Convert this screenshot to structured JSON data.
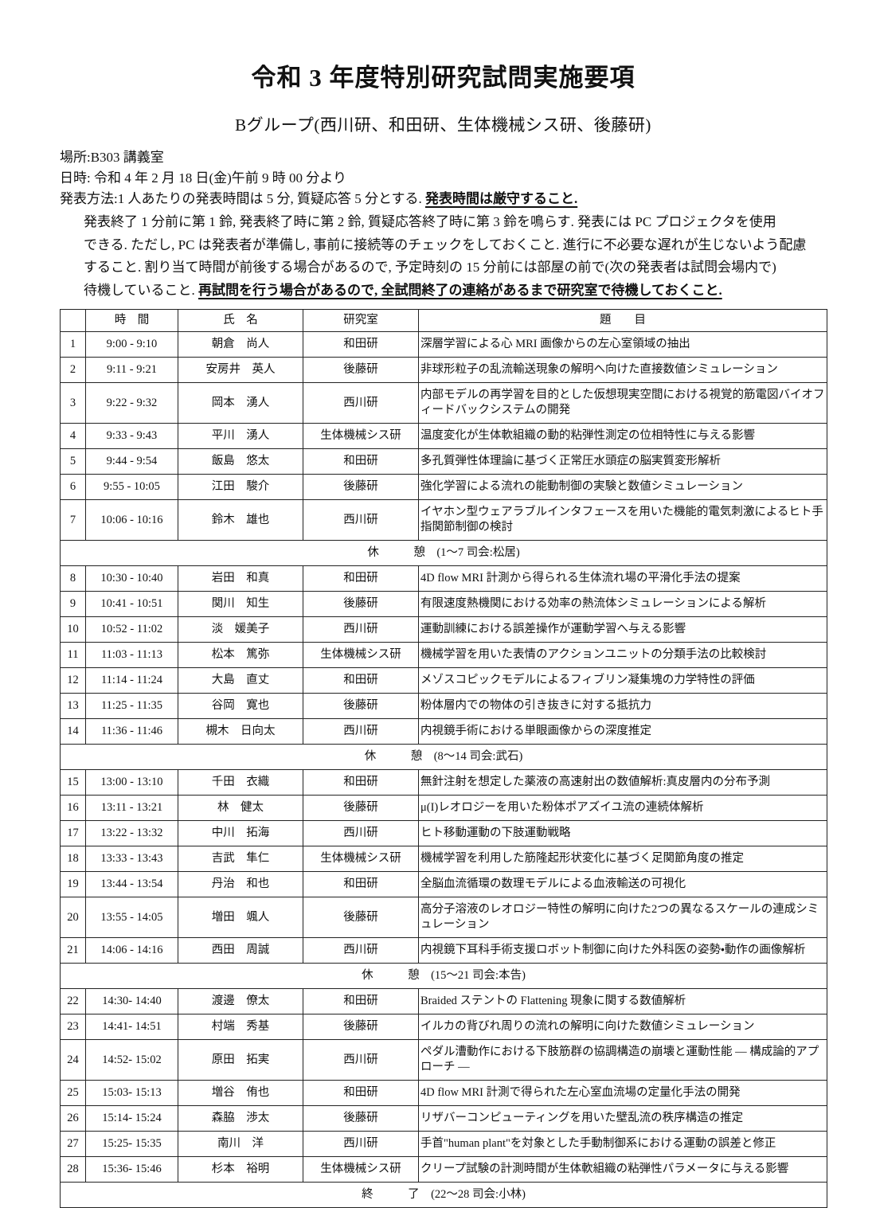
{
  "page": {
    "title": "令和 3 年度特別研究試問実施要項",
    "subtitle": "Bグループ(西川研、和田研、生体機械シス研、後藤研)",
    "location_line": "場所:B303 講義室",
    "datetime_line": "日時: 令和 4 年 2 月 18 日(金)午前 9 時 00 分より",
    "method_prefix": "発表方法:1 人あたりの発表時間は 5 分, 質疑応答 5 分とする. ",
    "method_emphasis": "発表時間は厳守すること. ",
    "notes": {
      "line1": "発表終了 1 分前に第 1 鈴, 発表終了時に第 2 鈴, 質疑応答終了時に第 3 鈴を鳴らす. 発表には PC プロジェクタを使用",
      "line2": "できる. ただし, PC は発表者が準備し, 事前に接続等のチェックをしておくこと. 進行に不必要な遅れが生じないよう配慮",
      "line3": "すること. 割り当て時間が前後する場合があるので, 予定時刻の 15 分前には部屋の前で(次の発表者は試問会場内で)",
      "line4_prefix": "待機していること. ",
      "line4_emphasis": "再試問を行う場合があるので, 全試問終了の連絡があるまで研究室で待機しておくこと. "
    }
  },
  "table": {
    "headers": {
      "no": "",
      "time": "時　間",
      "name": "氏　名",
      "lab": "研究室",
      "title": "題　　目"
    },
    "rows": [
      {
        "no": "1",
        "time": "9:00 - 9:10",
        "name": "朝倉　尚人",
        "lab": "和田研",
        "title": "深層学習による心 MRI 画像からの左心室領域の抽出"
      },
      {
        "no": "2",
        "time": "9:11 - 9:21",
        "name": "安房井　英人",
        "lab": "後藤研",
        "title": "非球形粒子の乱流輸送現象の解明へ向けた直接数値シミュレーション"
      },
      {
        "no": "3",
        "time": "9:22 - 9:32",
        "name": "岡本　湧人",
        "lab": "西川研",
        "title": "内部モデルの再学習を目的とした仮想現実空間における視覚的筋電図バイオフィードバックシステムの開発"
      },
      {
        "no": "4",
        "time": "9:33 - 9:43",
        "name": "平川　湧人",
        "lab": "生体機械シス研",
        "title": "温度変化が生体軟組織の動的粘弾性測定の位相特性に与える影響"
      },
      {
        "no": "5",
        "time": "9:44 - 9:54",
        "name": "飯島　悠太",
        "lab": "和田研",
        "title": "多孔質弾性体理論に基づく正常圧水頭症の脳実質変形解析"
      },
      {
        "no": "6",
        "time": "9:55 - 10:05",
        "name": "江田　駿介",
        "lab": "後藤研",
        "title": "強化学習による流れの能動制御の実験と数値シミュレーション"
      },
      {
        "no": "7",
        "time": "10:06 - 10:16",
        "name": "鈴木　雄也",
        "lab": "西川研",
        "title": "イヤホン型ウェアラブルインタフェースを用いた機能的電気刺激によるヒト手指関節制御の検討"
      },
      {
        "break_label": "休　　　憩　(1〜7 司会:松居)"
      },
      {
        "no": "8",
        "time": "10:30 - 10:40",
        "name": "岩田　和真",
        "lab": "和田研",
        "title": "4D flow MRI 計測から得られる生体流れ場の平滑化手法の提案"
      },
      {
        "no": "9",
        "time": "10:41 - 10:51",
        "name": "関川　知生",
        "lab": "後藤研",
        "title": "有限速度熱機関における効率の熱流体シミュレーションによる解析"
      },
      {
        "no": "10",
        "time": "10:52 - 11:02",
        "name": "淡　媛美子",
        "lab": "西川研",
        "title": "運動訓練における誤差操作が運動学習へ与える影響"
      },
      {
        "no": "11",
        "time": "11:03 - 11:13",
        "name": "松本　篤弥",
        "lab": "生体機械シス研",
        "title": "機械学習を用いた表情のアクションユニットの分類手法の比較検討"
      },
      {
        "no": "12",
        "time": "11:14 - 11:24",
        "name": "大島　直丈",
        "lab": "和田研",
        "title": "メゾスコピックモデルによるフィブリン凝集塊の力学特性の評価"
      },
      {
        "no": "13",
        "time": "11:25 - 11:35",
        "name": "谷岡　寛也",
        "lab": "後藤研",
        "title": "粉体層内での物体の引き抜きに対する抵抗力"
      },
      {
        "no": "14",
        "time": "11:36 - 11:46",
        "name": "槻木　日向太",
        "lab": "西川研",
        "title": "内視鏡手術における単眼画像からの深度推定"
      },
      {
        "break_label": "休　　　憩　(8〜14 司会:武石)"
      },
      {
        "no": "15",
        "time": "13:00 - 13:10",
        "name": "千田　衣織",
        "lab": "和田研",
        "title": "無針注射を想定した薬液の高速射出の数値解析:真皮層内の分布予測"
      },
      {
        "no": "16",
        "time": "13:11 - 13:21",
        "name": "林　健太",
        "lab": "後藤研",
        "title": "μ(I)レオロジーを用いた粉体ポアズイユ流の連続体解析"
      },
      {
        "no": "17",
        "time": "13:22 - 13:32",
        "name": "中川　拓海",
        "lab": "西川研",
        "title": "ヒト移動運動の下肢運動戦略"
      },
      {
        "no": "18",
        "time": "13:33 - 13:43",
        "name": "吉武　隼仁",
        "lab": "生体機械シス研",
        "title": "機械学習を利用した筋隆起形状変化に基づく足関節角度の推定"
      },
      {
        "no": "19",
        "time": "13:44 - 13:54",
        "name": "丹治　和也",
        "lab": "和田研",
        "title": "全脳血流循環の数理モデルによる血液輸送の可視化"
      },
      {
        "no": "20",
        "time": "13:55 - 14:05",
        "name": "増田　颯人",
        "lab": "後藤研",
        "title": "高分子溶液のレオロジー特性の解明に向けた2つの異なるスケールの連成シミュレーション"
      },
      {
        "no": "21",
        "time": "14:06 - 14:16",
        "name": "西田　周誠",
        "lab": "西川研",
        "title": "内視鏡下耳科手術支援ロボット制御に向けた外科医の姿勢・動作の画像解析"
      },
      {
        "break_label": "休　　　憩　(15〜21 司会:本告)"
      },
      {
        "no": "22",
        "time": "14:30- 14:40",
        "name": "渡邊　僚太",
        "lab": "和田研",
        "title": "Braided ステントの Flattening 現象に関する数値解析"
      },
      {
        "no": "23",
        "time": "14:41- 14:51",
        "name": "村端　秀基",
        "lab": "後藤研",
        "title": "イルカの背びれ周りの流れの解明に向けた数値シミュレーション"
      },
      {
        "no": "24",
        "time": "14:52- 15:02",
        "name": "原田　拓実",
        "lab": "西川研",
        "title": "ペダル漕動作における下肢筋群の協調構造の崩壊と運動性能 ― 構成論的アプローチ ―"
      },
      {
        "no": "25",
        "time": "15:03- 15:13",
        "name": "増谷　侑也",
        "lab": "和田研",
        "title": "4D flow MRI 計測で得られた左心室血流場の定量化手法の開発"
      },
      {
        "no": "26",
        "time": "15:14- 15:24",
        "name": "森脇　渉太",
        "lab": "後藤研",
        "title": "リザバーコンピューティングを用いた壁乱流の秩序構造の推定"
      },
      {
        "no": "27",
        "time": "15:25- 15:35",
        "name": "南川　洋",
        "lab": "西川研",
        "title": "手首\"human plant\"を対象とした手動制御系における運動の誤差と修正"
      },
      {
        "no": "28",
        "time": "15:36- 15:46",
        "name": "杉本　裕明",
        "lab": "生体機械シス研",
        "title": "クリープ試験の計測時間が生体軟組織の粘弾性パラメータに与える影響"
      },
      {
        "break_label": "終　　　了　(22〜28 司会:小林)"
      }
    ]
  }
}
